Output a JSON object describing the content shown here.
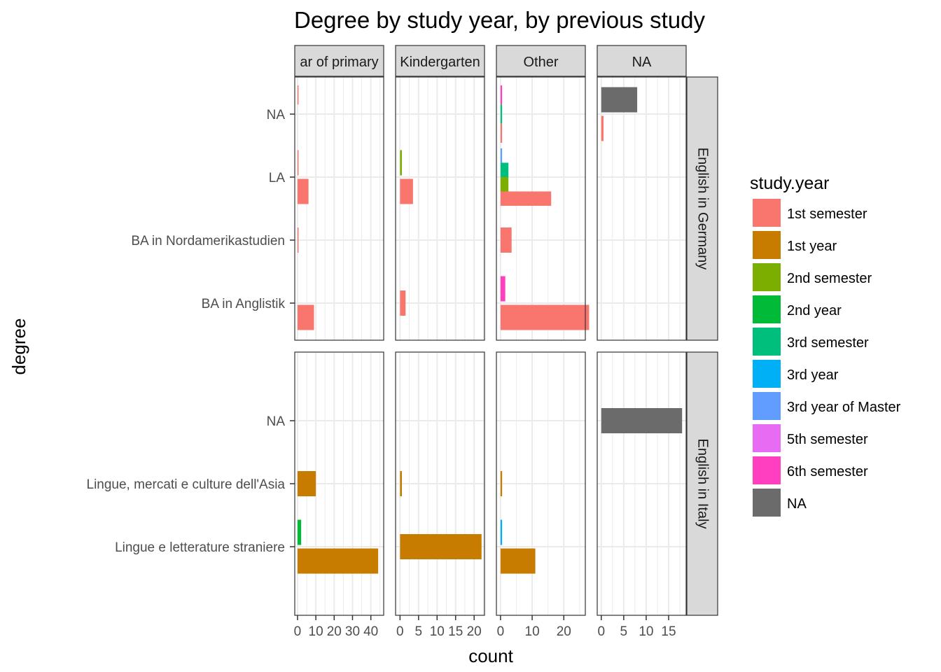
{
  "chart_data": {
    "type": "bar",
    "orientation": "horizontal",
    "title": "Degree by study year, by previous study",
    "xlabel": "count",
    "ylabel": "degree",
    "grid": true,
    "legend_position": "right",
    "legend_title": "study.year",
    "legend": [
      {
        "label": "1st semester",
        "color": "#F8766D"
      },
      {
        "label": "1st year",
        "color": "#C77C00"
      },
      {
        "label": "2nd semester",
        "color": "#7CAE00"
      },
      {
        "label": "2nd year",
        "color": "#00BA38"
      },
      {
        "label": "3rd semester",
        "color": "#00BF7D"
      },
      {
        "label": "3rd year",
        "color": "#00B0F6"
      },
      {
        "label": "3rd year of Master",
        "color": "#619CFF"
      },
      {
        "label": "5th semester",
        "color": "#E76BF3"
      },
      {
        "label": "6th semester",
        "color": "#FF3FBF"
      },
      {
        "label": "NA",
        "color": "#6B6B6B"
      }
    ],
    "col_facets": [
      {
        "label": "ar of primary",
        "xlim": [
          -1.5,
          47
        ],
        "ticks": [
          0,
          10,
          20,
          30,
          40
        ],
        "tick_labels": [
          "0",
          "10",
          "20",
          "30",
          "40"
        ]
      },
      {
        "label": "Kindergarten",
        "xlim": [
          -1.2,
          22.8
        ],
        "ticks": [
          0,
          5,
          10,
          15,
          20
        ],
        "tick_labels": [
          "0",
          "5",
          "10",
          "15",
          "20"
        ]
      },
      {
        "label": "Other",
        "xlim": [
          -1.3,
          26.8
        ],
        "ticks": [
          0,
          10,
          20
        ],
        "tick_labels": [
          "0",
          "10",
          "20"
        ]
      },
      {
        "label": "NA",
        "xlim": [
          -0.9,
          18.9
        ],
        "ticks": [
          0,
          5,
          10,
          15
        ],
        "tick_labels": [
          "0",
          "5",
          "10",
          "15"
        ]
      }
    ],
    "row_facets": [
      {
        "label": "English in Germany",
        "categories": [
          "NA",
          "LA",
          "BA in Nordamerikastudien",
          "BA in Anglistik"
        ]
      },
      {
        "label": "English in Italy",
        "categories": [
          "NA",
          "Lingue, mercati e culture dell'Asia",
          "Lingue e letterature straniere"
        ]
      }
    ],
    "bars": [
      {
        "row": 0,
        "col": 0,
        "category": "NA",
        "series": "1st semester",
        "value": 0.3,
        "slot": 0,
        "slots": 3
      },
      {
        "row": 0,
        "col": 0,
        "category": "LA",
        "series": "1st semester",
        "value": 0.3,
        "slot": 0,
        "slots": 2
      },
      {
        "row": 0,
        "col": 0,
        "category": "LA",
        "series": "1st semester",
        "value": 6,
        "slot": 1,
        "slots": 2
      },
      {
        "row": 0,
        "col": 0,
        "category": "BA in Nordamerikastudien",
        "series": "1st semester",
        "value": 0.3,
        "slot": 0,
        "slots": 1
      },
      {
        "row": 0,
        "col": 0,
        "category": "BA in Anglistik",
        "series": "1st semester",
        "value": 9,
        "slot": 1,
        "slots": 2
      },
      {
        "row": 0,
        "col": 1,
        "category": "LA",
        "series": "2nd semester",
        "value": 0.5,
        "slot": 0,
        "slots": 2
      },
      {
        "row": 0,
        "col": 1,
        "category": "LA",
        "series": "1st semester",
        "value": 3.5,
        "slot": 1,
        "slots": 2
      },
      {
        "row": 0,
        "col": 1,
        "category": "BA in Anglistik",
        "series": "1st semester",
        "value": 1.5,
        "slot": 0,
        "slots": 1
      },
      {
        "row": 0,
        "col": 2,
        "category": "NA",
        "series": "6th semester",
        "value": 0.5,
        "slot": 0,
        "slots": 3
      },
      {
        "row": 0,
        "col": 2,
        "category": "NA",
        "series": "3rd semester",
        "value": 0.5,
        "slot": 1,
        "slots": 3
      },
      {
        "row": 0,
        "col": 2,
        "category": "NA",
        "series": "1st semester",
        "value": 0.5,
        "slot": 2,
        "slots": 3
      },
      {
        "row": 0,
        "col": 2,
        "category": "LA",
        "series": "3rd year of Master",
        "value": 0.5,
        "slot": 0,
        "slots": 4
      },
      {
        "row": 0,
        "col": 2,
        "category": "LA",
        "series": "3rd semester",
        "value": 2.5,
        "slot": 1,
        "slots": 4
      },
      {
        "row": 0,
        "col": 2,
        "category": "LA",
        "series": "2nd semester",
        "value": 2.5,
        "slot": 2,
        "slots": 4
      },
      {
        "row": 0,
        "col": 2,
        "category": "LA",
        "series": "1st semester",
        "value": 16,
        "slot": 3,
        "slots": 4
      },
      {
        "row": 0,
        "col": 2,
        "category": "BA in Nordamerikastudien",
        "series": "1st semester",
        "value": 3.5,
        "slot": 0,
        "slots": 1
      },
      {
        "row": 0,
        "col": 2,
        "category": "BA in Anglistik",
        "series": "6th semester",
        "value": 1.5,
        "slot": 0,
        "slots": 2
      },
      {
        "row": 0,
        "col": 2,
        "category": "BA in Anglistik",
        "series": "1st semester",
        "value": 28,
        "slot": 1,
        "slots": 2
      },
      {
        "row": 0,
        "col": 3,
        "category": "NA",
        "series": "NA",
        "value": 8,
        "slot": 0,
        "slots": 2
      },
      {
        "row": 0,
        "col": 3,
        "category": "NA",
        "series": "1st semester",
        "value": 0.5,
        "slot": 1,
        "slots": 2
      },
      {
        "row": 1,
        "col": 0,
        "category": "Lingue, mercati e culture dell'Asia",
        "series": "1st year",
        "value": 10,
        "slot": 0,
        "slots": 1
      },
      {
        "row": 1,
        "col": 0,
        "category": "Lingue e letterature straniere",
        "series": "2nd year",
        "value": 2,
        "slot": 0,
        "slots": 2
      },
      {
        "row": 1,
        "col": 0,
        "category": "Lingue e letterature straniere",
        "series": "1st year",
        "value": 44,
        "slot": 1,
        "slots": 2
      },
      {
        "row": 1,
        "col": 1,
        "category": "Lingue, mercati e culture dell'Asia",
        "series": "1st year",
        "value": 0.5,
        "slot": 0,
        "slots": 1
      },
      {
        "row": 1,
        "col": 1,
        "category": "Lingue e letterature straniere",
        "series": "1st year",
        "value": 22,
        "slot": 0,
        "slots": 1
      },
      {
        "row": 1,
        "col": 2,
        "category": "Lingue, mercati e culture dell'Asia",
        "series": "1st year",
        "value": 0.5,
        "slot": 0,
        "slots": 1
      },
      {
        "row": 1,
        "col": 2,
        "category": "Lingue e letterature straniere",
        "series": "3rd year",
        "value": 0.5,
        "slot": 0,
        "slots": 2
      },
      {
        "row": 1,
        "col": 2,
        "category": "Lingue e letterature straniere",
        "series": "1st year",
        "value": 11,
        "slot": 1,
        "slots": 2
      },
      {
        "row": 1,
        "col": 3,
        "category": "NA",
        "series": "NA",
        "value": 18,
        "slot": 0,
        "slots": 1
      }
    ]
  }
}
